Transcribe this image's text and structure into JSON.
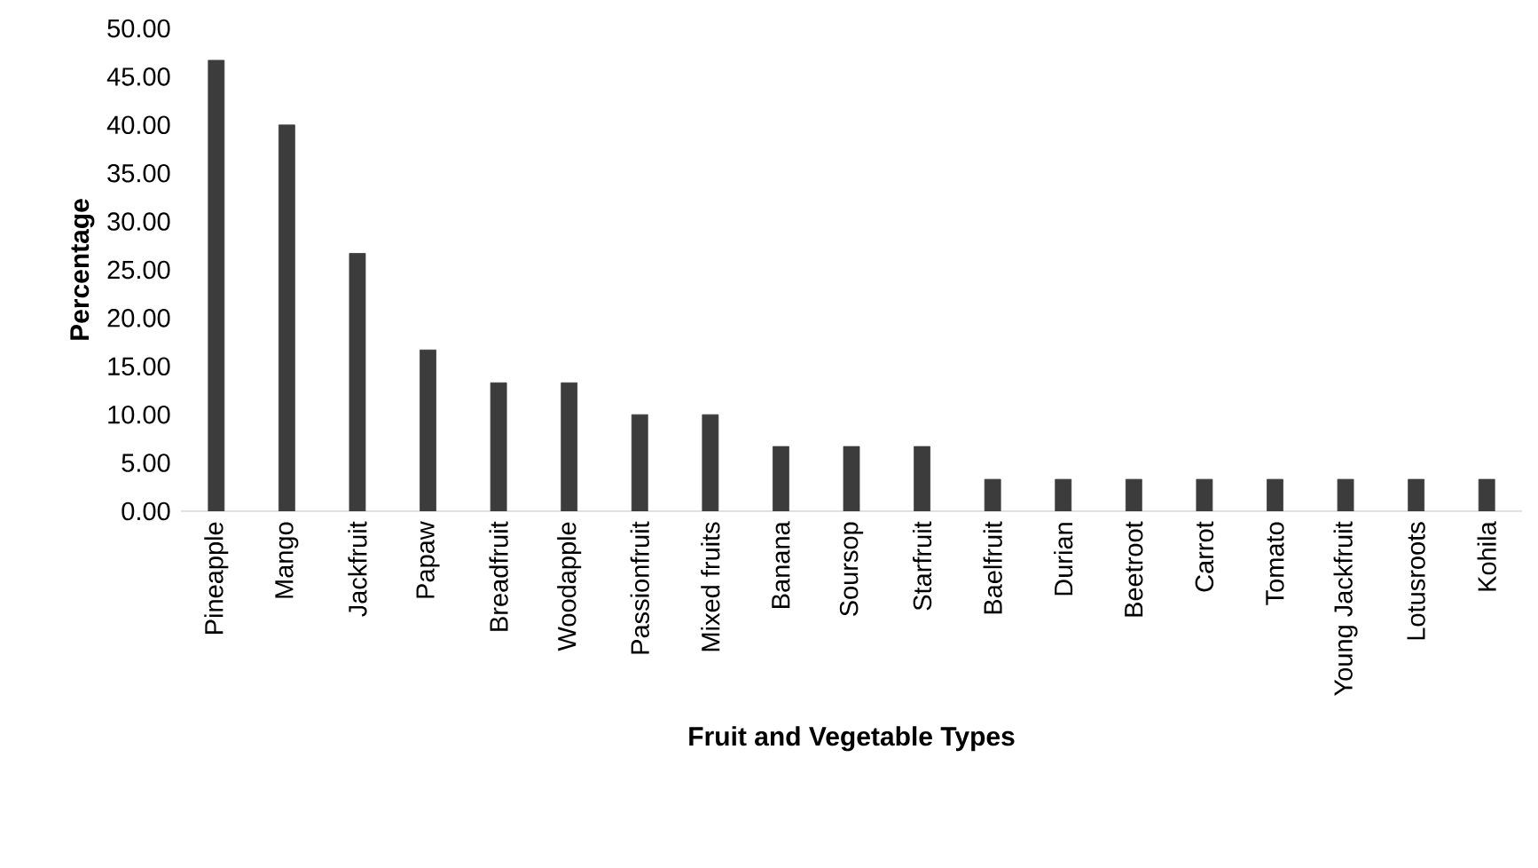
{
  "chart_data": {
    "type": "bar",
    "xlabel": "Fruit and Vegetable Types",
    "ylabel": "Percentage",
    "categories": [
      "Pineapple",
      "Mango",
      "Jackfruit",
      "Papaw",
      "Breadfruit",
      "Woodapple",
      "Passionfruit",
      "Mixed fruits",
      "Banana",
      "Soursop",
      "Starfruit",
      "Baelfruit",
      "Durian",
      "Beetroot",
      "Carrot",
      "Tomato",
      "Young Jackfruit",
      "Lotusroots",
      "Kohila"
    ],
    "values": [
      46.7,
      40.0,
      26.7,
      16.7,
      13.3,
      13.3,
      10.0,
      10.0,
      6.7,
      6.7,
      6.7,
      3.3,
      3.3,
      3.3,
      3.3,
      3.3,
      3.3,
      3.3,
      3.3
    ],
    "color": "#3c3c3c",
    "ylim": [
      0,
      50
    ],
    "yticks": [
      {
        "value": 0,
        "label": "0.00"
      },
      {
        "value": 5,
        "label": "5.00"
      },
      {
        "value": 10,
        "label": "10.00"
      },
      {
        "value": 15,
        "label": "15.00"
      },
      {
        "value": 20,
        "label": "20.00"
      },
      {
        "value": 25,
        "label": "25.00"
      },
      {
        "value": 30,
        "label": "30.00"
      },
      {
        "value": 35,
        "label": "35.00"
      },
      {
        "value": 40,
        "label": "40.00"
      },
      {
        "value": 45,
        "label": "45.00"
      },
      {
        "value": 50,
        "label": "50.00"
      }
    ],
    "grid": false
  }
}
